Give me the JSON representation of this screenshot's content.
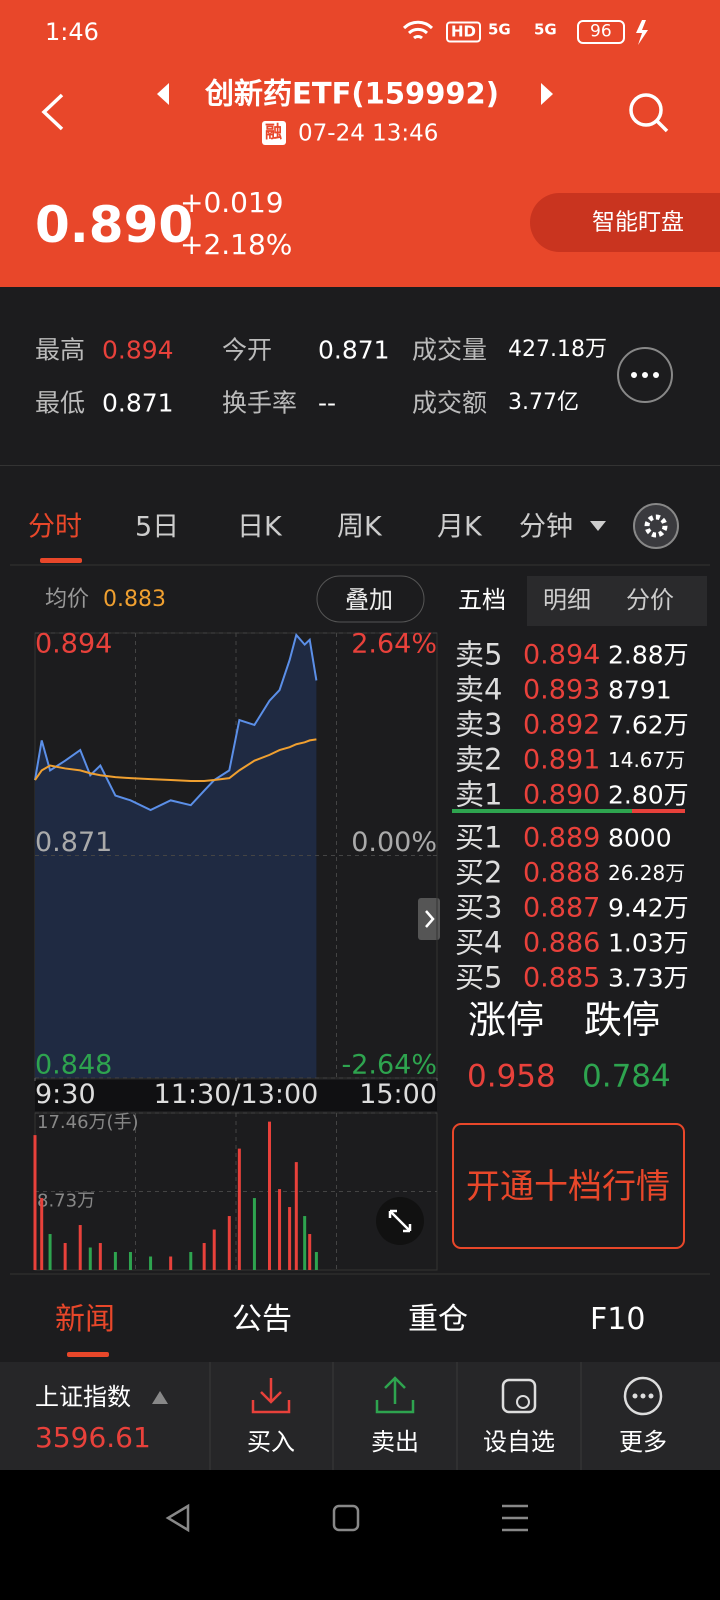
{
  "status_bar": {
    "time": "1:46",
    "hd": "HD",
    "networks": [
      "5G",
      "5G"
    ],
    "battery": "96"
  },
  "header": {
    "name": "创新药ETF(159992)",
    "badge": "融",
    "datetime": "07-24 13:46",
    "price": "0.890",
    "change": "+0.019",
    "change_pct": "+2.18%",
    "watch_button": "智能盯盘"
  },
  "stats": [
    {
      "label": "最高",
      "value": "0.894"
    },
    {
      "label": "今开",
      "value": "0.871"
    },
    {
      "label": "成交量",
      "value": "427.18万"
    },
    {
      "label": "最低",
      "value": "0.871"
    },
    {
      "label": "换手率",
      "value": "--"
    },
    {
      "label": "成交额",
      "value": "3.77亿"
    }
  ],
  "tabs": [
    "分时",
    "5日",
    "日K",
    "周K",
    "月K",
    "分钟"
  ],
  "chart": {
    "type": "line",
    "avg_label": "均价",
    "avg_value": "0.883",
    "overlay_button": "叠加",
    "x": [
      0,
      4,
      9,
      18,
      27,
      33,
      39,
      48,
      57,
      69,
      81,
      93,
      101,
      107,
      116,
      122,
      131,
      140,
      146,
      152,
      156,
      161,
      164,
      168
    ],
    "xlim": [
      0,
      240
    ],
    "xticks": [
      {
        "value": 0,
        "label": "9:30"
      },
      {
        "value": 120,
        "label": "11:30/13:00"
      },
      {
        "value": 240,
        "label": "15:00"
      }
    ],
    "ylim": [
      0.848,
      0.894
    ],
    "yticks": [
      0.894,
      0.871,
      0.848
    ],
    "y2lim": [
      -2.64,
      2.64
    ],
    "y2ticks": [
      {
        "value": 2.64,
        "label": "2.64%"
      },
      {
        "value": 0,
        "label": "0.00%"
      },
      {
        "value": -2.64,
        "label": "-2.64%"
      }
    ],
    "series": [
      {
        "color": "#5b8fe8",
        "values": [
          0.8788,
          0.8829,
          0.8798,
          0.8808,
          0.8819,
          0.8793,
          0.8803,
          0.8772,
          0.8767,
          0.8757,
          0.8767,
          0.8762,
          0.8777,
          0.8788,
          0.8798,
          0.885,
          0.8845,
          0.887,
          0.8881,
          0.8912,
          0.8938,
          0.8928,
          0.8933,
          0.8891
        ]
      },
      {
        "color": "#f0a030",
        "values": [
          0.8788,
          0.8798,
          0.8803,
          0.88,
          0.8798,
          0.8795,
          0.8793,
          0.8791,
          0.879,
          0.8789,
          0.8788,
          0.8787,
          0.8787,
          0.8788,
          0.879,
          0.8798,
          0.8808,
          0.8814,
          0.8819,
          0.8822,
          0.8825,
          0.8827,
          0.8829,
          0.883
        ]
      }
    ],
    "volume": {
      "ylim": [
        0,
        17.46
      ],
      "yticks": [
        {
          "value": 17.46,
          "label": "17.46万(手)"
        },
        {
          "value": 8.73,
          "label": "8.73万"
        }
      ],
      "values": [
        15.0,
        8.0,
        4.0,
        3.0,
        5.0,
        2.5,
        3.0,
        2.0,
        2.0,
        1.5,
        1.5,
        2.0,
        3.0,
        4.5,
        6.0,
        13.5,
        8.0,
        16.5,
        9.0,
        7.0,
        12.0,
        6.0,
        4.0,
        2.0
      ]
    }
  },
  "order_book": {
    "tabs": [
      "五档",
      "明细",
      "分价"
    ],
    "asks": [
      {
        "label": "卖5",
        "price": "0.894",
        "volume": "2.88万"
      },
      {
        "label": "卖4",
        "price": "0.893",
        "volume": "8791"
      },
      {
        "label": "卖3",
        "price": "0.892",
        "volume": "7.62万"
      },
      {
        "label": "卖2",
        "price": "0.891",
        "volume": "14.67万"
      },
      {
        "label": "卖1",
        "price": "0.890",
        "volume": "2.80万"
      }
    ],
    "bids": [
      {
        "label": "买1",
        "price": "0.889",
        "volume": "8000"
      },
      {
        "label": "买2",
        "price": "0.888",
        "volume": "26.28万"
      },
      {
        "label": "买3",
        "price": "0.887",
        "volume": "9.42万"
      },
      {
        "label": "买4",
        "price": "0.886",
        "volume": "1.03万"
      },
      {
        "label": "买5",
        "price": "0.885",
        "volume": "3.73万"
      }
    ]
  },
  "limits": {
    "up_label": "涨停",
    "up": "0.958",
    "down_label": "跌停",
    "down": "0.784"
  },
  "upgrade_button": "开通十档行情",
  "news_tabs": [
    "新闻",
    "公告",
    "重仓",
    "F10"
  ],
  "bottom_bar": {
    "index_name": "上证指数",
    "index_value": "3596.61",
    "actions": [
      "买入",
      "卖出",
      "设自选",
      "更多"
    ]
  }
}
